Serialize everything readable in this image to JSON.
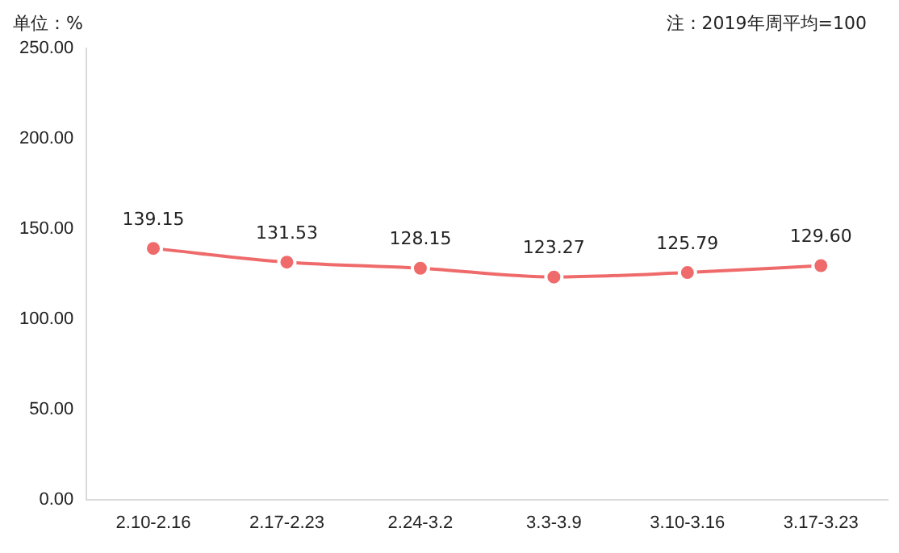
{
  "chart_data": {
    "type": "line",
    "ylabel": "单位：%",
    "annotations": [
      "注：2019年周平均=100"
    ],
    "categories": [
      "2.10-2.16",
      "2.17-2.23",
      "2.24-3.2",
      "3.3-3.9",
      "3.10-3.16",
      "3.17-3.23"
    ],
    "series": [
      {
        "color": "#ef6b6b",
        "values": [
          139.15,
          131.53,
          128.15,
          123.27,
          125.79,
          129.6
        ],
        "value_labels": [
          "139.15",
          "131.53",
          "128.15",
          "123.27",
          "125.79",
          "129.60"
        ]
      }
    ],
    "ylim": [
      0,
      250
    ],
    "yticks": [
      {
        "value": 0,
        "label": "0.00"
      },
      {
        "value": 50,
        "label": "50.00"
      },
      {
        "value": 100,
        "label": "100.00"
      },
      {
        "value": 150,
        "label": "150.00"
      },
      {
        "value": 200,
        "label": "200.00"
      },
      {
        "value": 250,
        "label": "250.00"
      }
    ],
    "grid": false,
    "legend": false,
    "marker": "circle",
    "line_style": "solid"
  }
}
